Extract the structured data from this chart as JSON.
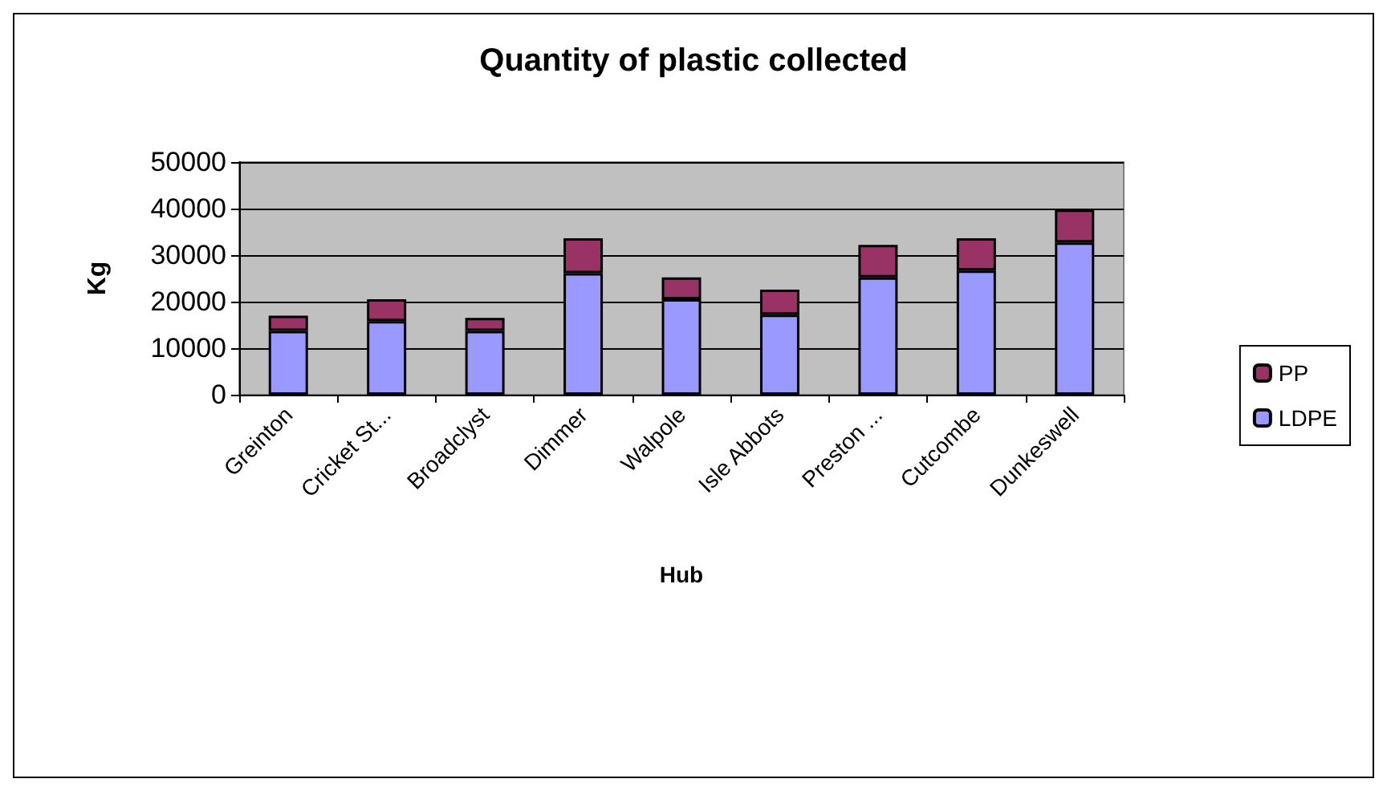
{
  "chart_data": {
    "type": "bar",
    "title": "Quantity of plastic collected",
    "xlabel": "Hub",
    "ylabel": "Kg",
    "categories": [
      "Greinton",
      "Cricket St...",
      "Broadclyst",
      "Dimmer",
      "Walpole",
      "Isle Abbots",
      "Preston ...",
      "Cutcombe",
      "Dunkeswell"
    ],
    "series": [
      {
        "name": "LDPE",
        "color": "#9999ff",
        "values": [
          13700,
          15800,
          13700,
          26100,
          20500,
          17200,
          25200,
          26700,
          32700
        ]
      },
      {
        "name": "PP",
        "color": "#993366",
        "values": [
          3300,
          4700,
          2800,
          7500,
          4700,
          5400,
          7000,
          6900,
          7100
        ]
      }
    ],
    "stacked": true,
    "ylim": [
      0,
      50000
    ],
    "yticks": [
      0,
      10000,
      20000,
      30000,
      40000,
      50000
    ],
    "grid": "y",
    "legend": "right"
  }
}
